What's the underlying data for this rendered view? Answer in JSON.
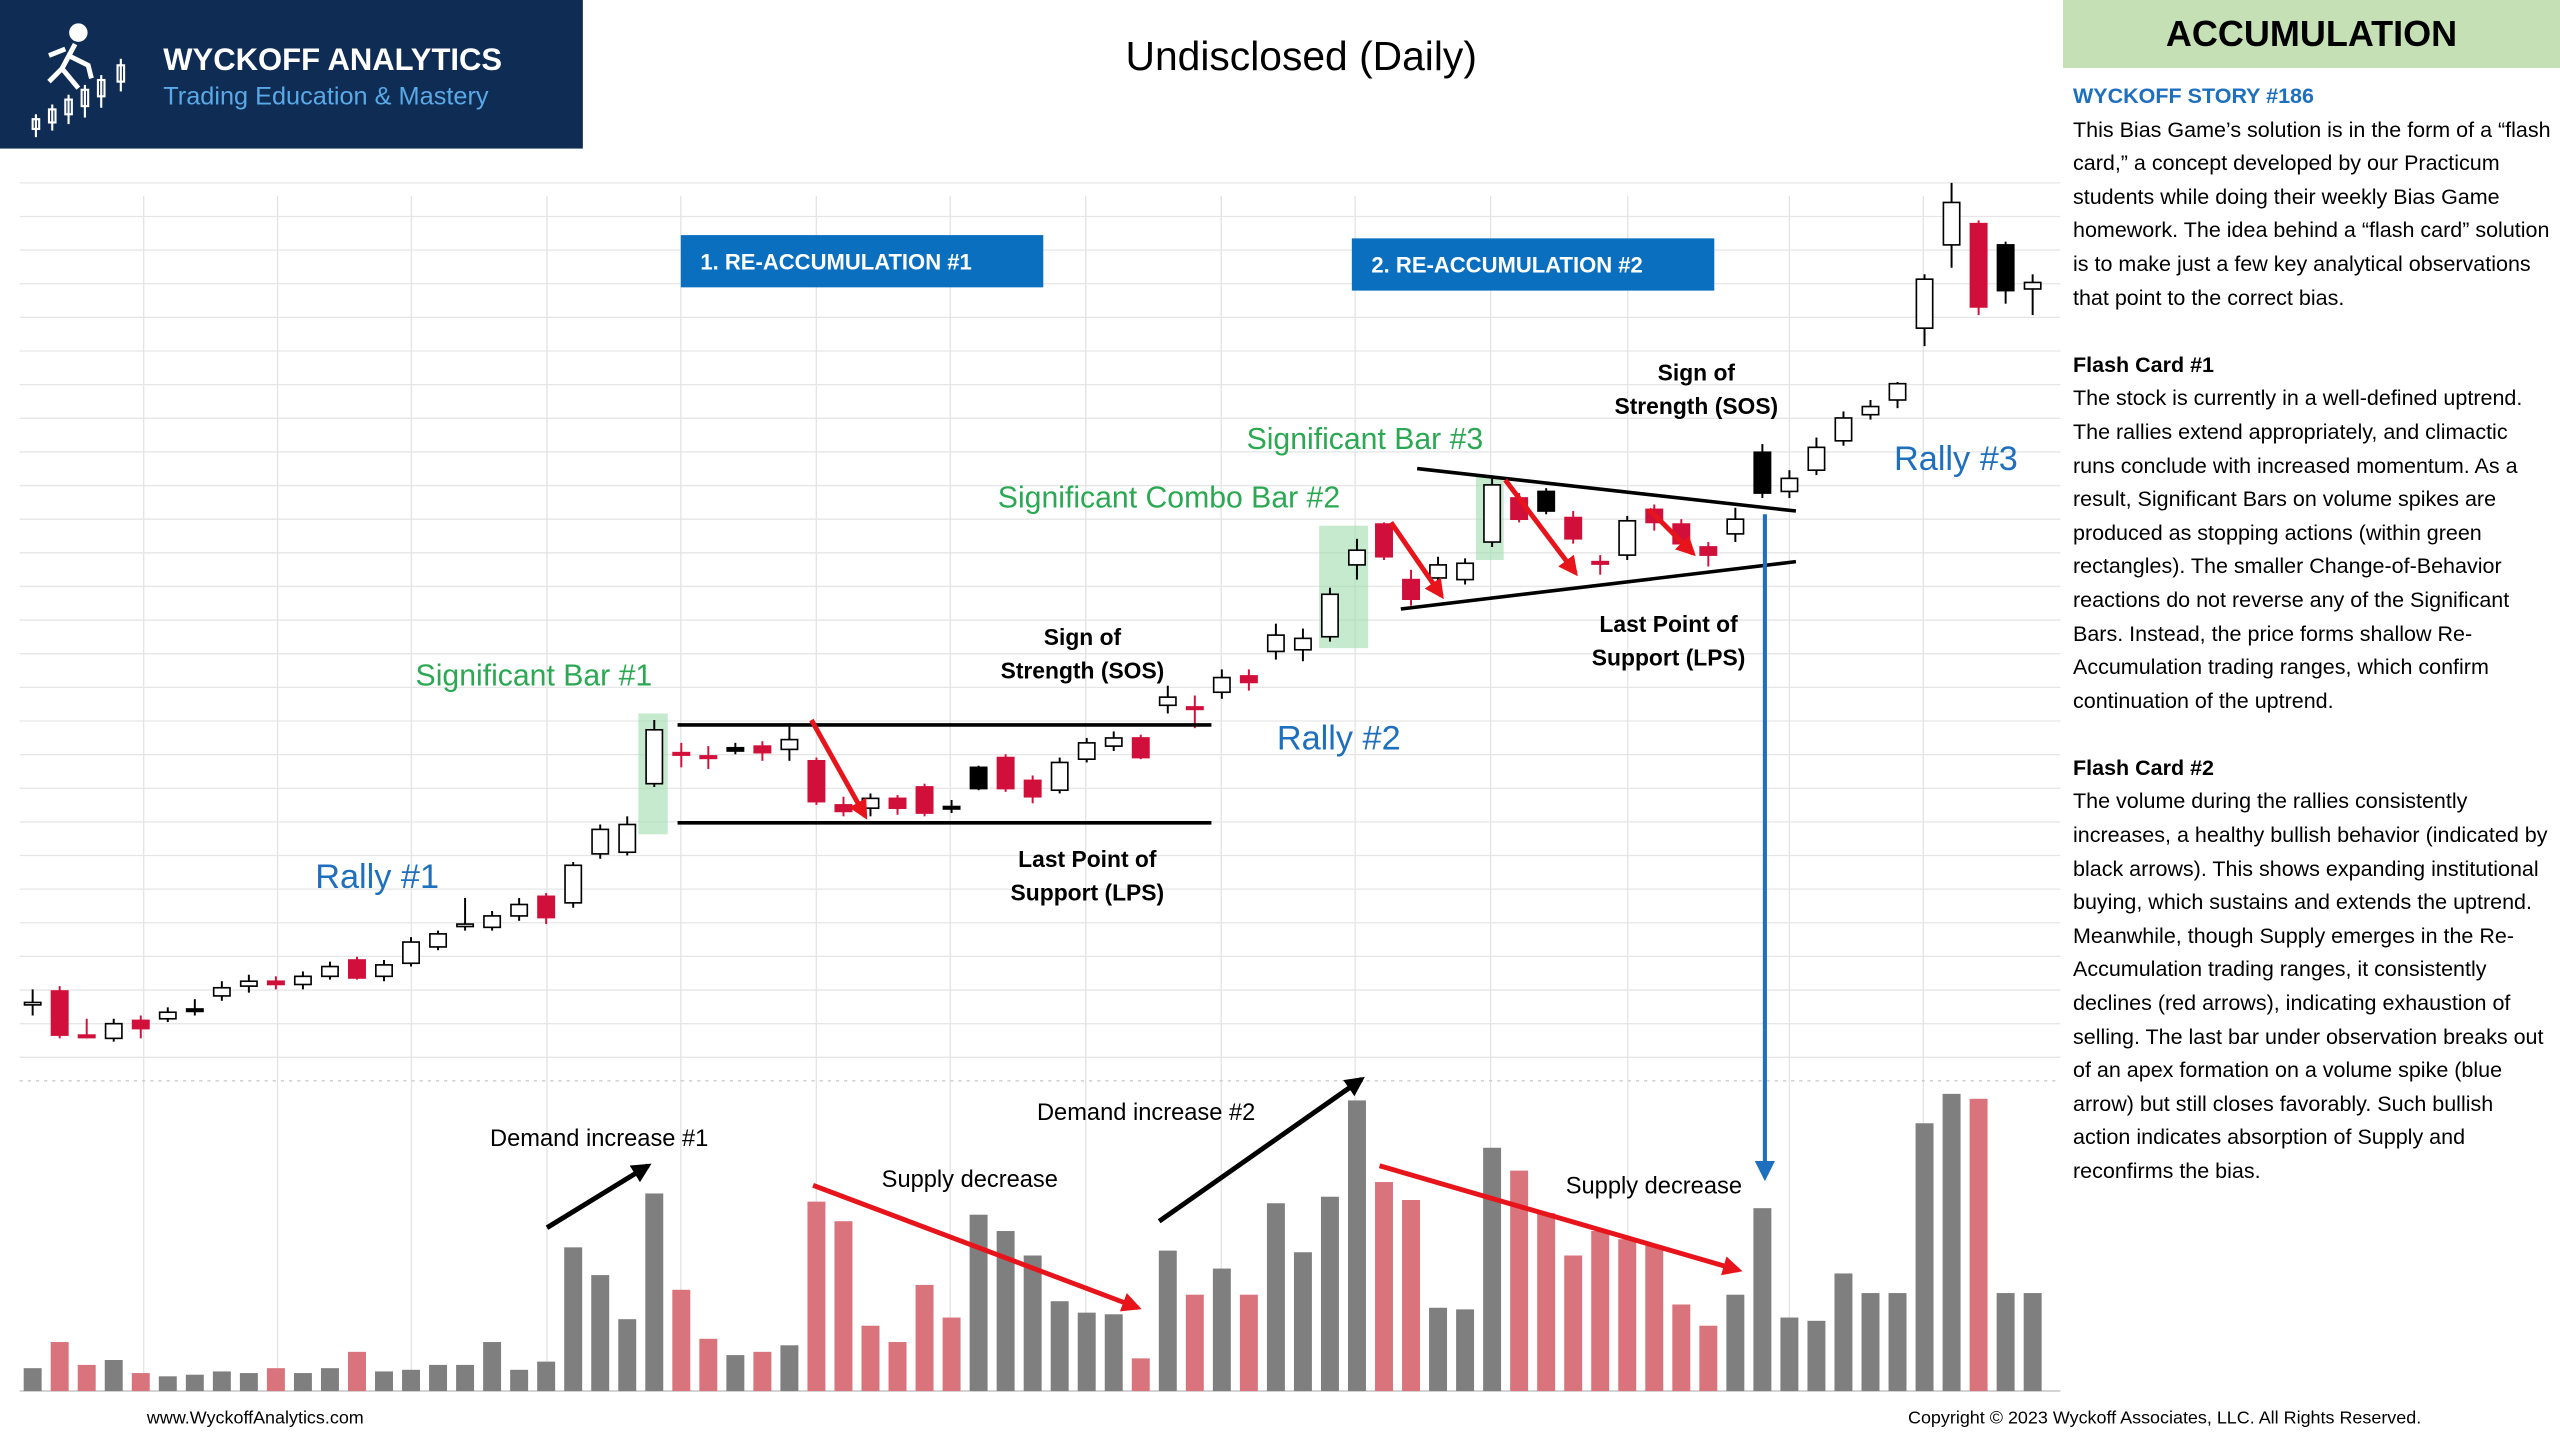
{
  "logo": {
    "name": "WYCKOFF ANALYTICS",
    "tagline": "Trading Education & Mastery"
  },
  "chart_data": {
    "type": "candlestick",
    "title": "Undisclosed (Daily)",
    "ylim": [
      0,
      545
    ],
    "ohlc": [
      [
        36,
        44,
        28,
        36
      ],
      [
        43,
        46,
        14,
        16
      ],
      [
        16,
        26,
        14,
        16
      ],
      [
        14,
        26,
        12,
        23
      ],
      [
        25,
        28,
        14,
        20
      ],
      [
        26,
        33,
        24,
        30
      ],
      [
        32,
        38,
        28,
        32
      ],
      [
        40,
        49,
        37,
        45
      ],
      [
        46,
        53,
        42,
        49
      ],
      [
        49,
        52,
        44,
        47
      ],
      [
        47,
        55,
        44,
        52
      ],
      [
        52,
        61,
        50,
        58
      ],
      [
        62,
        64,
        50,
        51
      ],
      [
        52,
        62,
        49,
        59
      ],
      [
        60,
        76,
        58,
        73
      ],
      [
        70,
        80,
        68,
        78
      ],
      [
        84,
        100,
        80,
        84
      ],
      [
        82,
        92,
        80,
        89
      ],
      [
        89,
        100,
        86,
        96
      ],
      [
        101,
        103,
        84,
        88
      ],
      [
        97,
        122,
        94,
        120
      ],
      [
        127,
        145,
        124,
        142
      ],
      [
        128,
        150,
        126,
        145
      ],
      [
        170,
        209,
        168,
        203
      ],
      [
        189,
        195,
        180,
        189
      ],
      [
        187,
        193,
        179,
        187
      ],
      [
        192,
        195,
        188,
        190
      ],
      [
        193,
        196,
        184,
        189
      ],
      [
        191,
        207,
        184,
        197
      ],
      [
        184,
        186,
        157,
        159
      ],
      [
        157,
        162,
        150,
        153
      ],
      [
        155,
        164,
        150,
        161
      ],
      [
        161,
        163,
        151,
        155
      ],
      [
        168,
        170,
        150,
        152
      ],
      [
        156,
        160,
        152,
        156
      ],
      [
        180,
        181,
        166,
        167
      ],
      [
        186,
        188,
        165,
        167
      ],
      [
        172,
        175,
        158,
        162
      ],
      [
        166,
        186,
        164,
        183
      ],
      [
        185,
        198,
        183,
        195
      ],
      [
        193,
        202,
        190,
        198
      ],
      [
        198,
        200,
        185,
        186
      ],
      [
        218,
        230,
        213,
        223
      ],
      [
        217,
        224,
        204,
        217
      ],
      [
        226,
        240,
        222,
        235
      ],
      [
        236,
        240,
        227,
        232
      ],
      [
        251,
        268,
        246,
        261
      ],
      [
        252,
        265,
        245,
        259
      ],
      [
        260,
        290,
        257,
        286
      ],
      [
        304,
        320,
        295,
        313
      ],
      [
        329,
        330,
        307,
        309
      ],
      [
        295,
        301,
        279,
        283
      ],
      [
        296,
        309,
        288,
        304
      ],
      [
        295,
        308,
        292,
        305
      ],
      [
        318,
        357,
        315,
        353
      ],
      [
        345,
        348,
        330,
        332
      ],
      [
        349,
        351,
        335,
        337
      ],
      [
        333,
        337,
        317,
        320
      ],
      [
        306,
        310,
        298,
        306
      ],
      [
        310,
        334,
        307,
        331
      ],
      [
        338,
        341,
        325,
        330
      ],
      [
        329,
        332,
        314,
        317
      ],
      [
        315,
        318,
        303,
        310
      ],
      [
        323,
        339,
        318,
        332
      ],
      [
        373,
        378,
        345,
        348
      ],
      [
        349,
        362,
        345,
        357
      ],
      [
        362,
        382,
        359,
        376
      ],
      [
        380,
        398,
        377,
        394
      ],
      [
        396,
        405,
        393,
        401
      ],
      [
        405,
        416,
        400,
        415
      ],
      [
        449,
        482,
        438,
        479
      ],
      [
        500,
        538,
        486,
        526
      ],
      [
        513,
        515,
        457,
        462
      ],
      [
        500,
        502,
        464,
        472
      ],
      [
        473,
        482,
        457,
        477
      ]
    ],
    "colors": [
      "#ffffff",
      "#d0103a",
      "#d0103a",
      "#ffffff",
      "#d0103a",
      "#ffffff",
      "#000000",
      "#ffffff",
      "#ffffff",
      "#d0103a",
      "#ffffff",
      "#ffffff",
      "#d0103a",
      "#ffffff",
      "#ffffff",
      "#ffffff",
      "#ffffff",
      "#ffffff",
      "#ffffff",
      "#d0103a",
      "#ffffff",
      "#ffffff",
      "#ffffff",
      "#ffffff",
      "#d0103a",
      "#d0103a",
      "#000000",
      "#d0103a",
      "#ffffff",
      "#d0103a",
      "#d0103a",
      "#ffffff",
      "#d0103a",
      "#d0103a",
      "#000000",
      "#000000",
      "#d0103a",
      "#d0103a",
      "#ffffff",
      "#ffffff",
      "#ffffff",
      "#d0103a",
      "#ffffff",
      "#d0103a",
      "#ffffff",
      "#d0103a",
      "#ffffff",
      "#ffffff",
      "#ffffff",
      "#ffffff",
      "#d0103a",
      "#d0103a",
      "#ffffff",
      "#ffffff",
      "#ffffff",
      "#d0103a",
      "#000000",
      "#d0103a",
      "#d0103a",
      "#ffffff",
      "#d0103a",
      "#d0103a",
      "#d0103a",
      "#ffffff",
      "#000000",
      "#ffffff",
      "#ffffff",
      "#ffffff",
      "#ffffff",
      "#ffffff",
      "#ffffff",
      "#ffffff",
      "#d0103a",
      "#000000",
      "#ffffff"
    ],
    "volume_ylim": [
      0,
      190
    ],
    "volume": [
      14,
      30,
      16,
      19,
      11,
      9,
      10,
      12,
      11,
      14,
      11,
      14,
      24,
      12,
      13,
      16,
      16,
      30,
      13,
      18,
      88,
      71,
      44,
      121,
      62,
      32,
      22,
      24,
      28,
      116,
      104,
      40,
      30,
      65,
      45,
      108,
      98,
      83,
      55,
      48,
      47,
      20,
      86,
      59,
      75,
      59,
      115,
      85,
      119,
      178,
      128,
      117,
      51,
      50,
      149,
      135,
      109,
      83,
      98,
      93,
      89,
      53,
      40,
      59,
      112,
      45,
      43,
      72,
      60,
      60,
      164,
      182,
      179,
      60,
      60
    ],
    "volume_colors": [
      "#7f7f7f",
      "#d9737c",
      "#d9737c",
      "#7f7f7f",
      "#d9737c",
      "#7f7f7f",
      "#7f7f7f",
      "#7f7f7f",
      "#7f7f7f",
      "#d9737c",
      "#7f7f7f",
      "#7f7f7f",
      "#d9737c",
      "#7f7f7f",
      "#7f7f7f",
      "#7f7f7f",
      "#7f7f7f",
      "#7f7f7f",
      "#7f7f7f",
      "#7f7f7f",
      "#7f7f7f",
      "#7f7f7f",
      "#7f7f7f",
      "#7f7f7f",
      "#d9737c",
      "#d9737c",
      "#7f7f7f",
      "#d9737c",
      "#7f7f7f",
      "#d9737c",
      "#d9737c",
      "#d9737c",
      "#d9737c",
      "#d9737c",
      "#d9737c",
      "#7f7f7f",
      "#7f7f7f",
      "#7f7f7f",
      "#7f7f7f",
      "#7f7f7f",
      "#7f7f7f",
      "#d9737c",
      "#7f7f7f",
      "#d9737c",
      "#7f7f7f",
      "#d9737c",
      "#7f7f7f",
      "#7f7f7f",
      "#7f7f7f",
      "#7f7f7f",
      "#d9737c",
      "#d9737c",
      "#7f7f7f",
      "#7f7f7f",
      "#7f7f7f",
      "#d9737c",
      "#d9737c",
      "#d9737c",
      "#d9737c",
      "#d9737c",
      "#d9737c",
      "#d9737c",
      "#d9737c",
      "#7f7f7f",
      "#7f7f7f",
      "#7f7f7f",
      "#7f7f7f",
      "#7f7f7f",
      "#7f7f7f",
      "#7f7f7f",
      "#7f7f7f",
      "#7f7f7f",
      "#d9737c",
      "#7f7f7f",
      "#7f7f7f"
    ],
    "annotations": [
      "1. RE-ACCUMULATION #1",
      "2. RE-ACCUMULATION #2",
      "Significant Bar #1",
      "Significant Combo Bar #2",
      "Significant Bar #3",
      "Rally #1",
      "Rally #2",
      "Rally #3",
      [
        "Sign of",
        "Strength (SOS)"
      ],
      [
        "Sign of",
        "Strength (SOS)"
      ],
      [
        "Last Point of",
        "Support (LPS)"
      ],
      [
        "Last Point of",
        "Support (LPS)"
      ],
      "Demand increase #1",
      "Supply decrease",
      "Demand increase #2",
      "Supply decrease"
    ]
  },
  "panel": {
    "header": "ACCUMULATION",
    "story": "WYCKOFF STORY #186",
    "intro": "This Bias Game’s solution is in the form of a “flash card,” a concept developed by our Practicum students while doing their weekly Bias Game homework. The idea behind a “flash card” solution is to make just a few key analytical observations that point to the correct bias.",
    "cards": [
      {
        "title": "Flash Card #1",
        "text": "The stock is currently in a well-defined uptrend. The rallies extend appropriately, and climactic runs conclude with increased momentum. As a result, Significant Bars on volume spikes are produced as stopping actions (within green rectangles). The smaller Change-of-Behavior reactions do not reverse any of the Significant Bars. Instead, the price forms shallow Re-Accumulation trading ranges, which confirm continuation of the uptrend."
      },
      {
        "title": "Flash Card #2",
        "text": "The volume during the rallies consistently increases, a healthy bullish behavior (indicated by black arrows). This shows expanding institutional buying, which sustains and extends the uptrend. Meanwhile, though Supply emerges in the Re-Accumulation trading ranges, it consistently declines (red arrows), indicating exhaustion of selling. The last bar under observation breaks out of an apex formation on a volume spike (blue arrow) but still closes favorably. Such bullish action indicates absorption of Supply and reconfirms the bias."
      }
    ]
  },
  "footer": {
    "site": "www.WyckoffAnalytics.com",
    "copyright": "Copyright © 2023 Wyckoff Associates, LLC. All Rights Reserved."
  }
}
